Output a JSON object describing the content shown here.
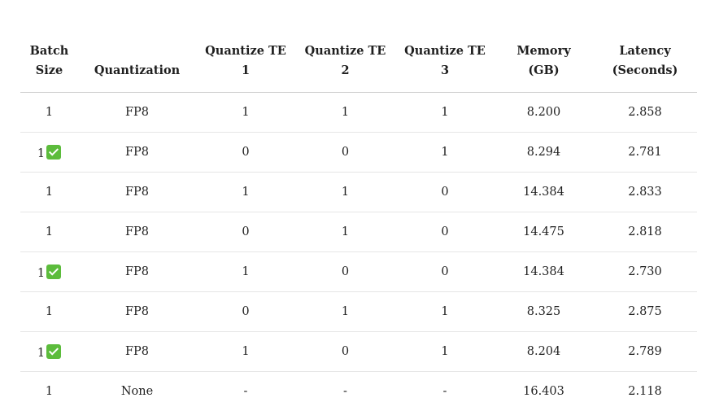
{
  "table": {
    "headers": [
      [
        "Batch",
        "Size"
      ],
      [
        "",
        "Quantization"
      ],
      [
        "Quantize TE",
        "1"
      ],
      [
        "Quantize TE",
        "2"
      ],
      [
        "Quantize TE",
        "3"
      ],
      [
        "Memory",
        "(GB)"
      ],
      [
        "Latency",
        "(Seconds)"
      ]
    ],
    "rows": [
      {
        "batch_size": "1",
        "checked": false,
        "quantization": "FP8",
        "te1": "1",
        "te2": "1",
        "te3": "1",
        "memory": "8.200",
        "latency": "2.858"
      },
      {
        "batch_size": "1",
        "checked": true,
        "quantization": "FP8",
        "te1": "0",
        "te2": "0",
        "te3": "1",
        "memory": "8.294",
        "latency": "2.781"
      },
      {
        "batch_size": "1",
        "checked": false,
        "quantization": "FP8",
        "te1": "1",
        "te2": "1",
        "te3": "0",
        "memory": "14.384",
        "latency": "2.833"
      },
      {
        "batch_size": "1",
        "checked": false,
        "quantization": "FP8",
        "te1": "0",
        "te2": "1",
        "te3": "0",
        "memory": "14.475",
        "latency": "2.818"
      },
      {
        "batch_size": "1",
        "checked": true,
        "quantization": "FP8",
        "te1": "1",
        "te2": "0",
        "te3": "0",
        "memory": "14.384",
        "latency": "2.730"
      },
      {
        "batch_size": "1",
        "checked": false,
        "quantization": "FP8",
        "te1": "0",
        "te2": "1",
        "te3": "1",
        "memory": "8.325",
        "latency": "2.875"
      },
      {
        "batch_size": "1",
        "checked": true,
        "quantization": "FP8",
        "te1": "1",
        "te2": "0",
        "te3": "1",
        "memory": "8.204",
        "latency": "2.789"
      },
      {
        "batch_size": "1",
        "checked": false,
        "quantization": "None",
        "te1": "-",
        "te2": "-",
        "te3": "-",
        "memory": "16.403",
        "latency": "2.118"
      }
    ],
    "check_icon": "check-mark-button-icon",
    "check_color": "#5cbc3c"
  }
}
